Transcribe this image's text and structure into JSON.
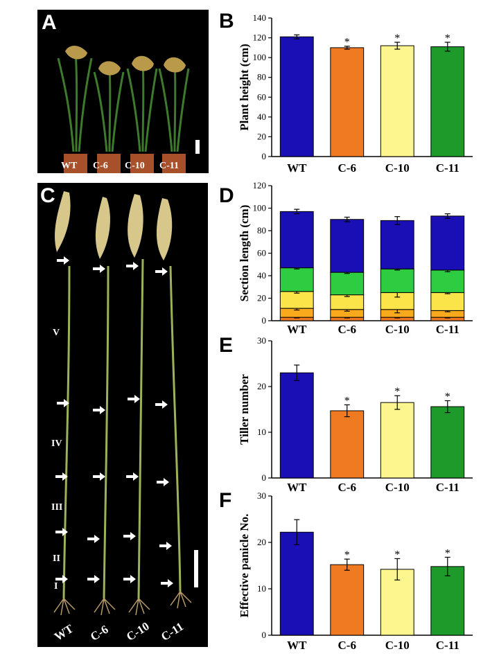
{
  "panels": {
    "A": {
      "letter": "A",
      "labels": [
        "WT",
        "C-6",
        "C-10",
        "C-11"
      ]
    },
    "B": {
      "letter": "B"
    },
    "C": {
      "letter": "C",
      "labels": [
        "WT",
        "C-6",
        "C-10",
        "C-11"
      ],
      "sections": [
        "V",
        "IV",
        "III",
        "II",
        "I"
      ]
    },
    "D": {
      "letter": "D"
    },
    "E": {
      "letter": "E"
    },
    "F": {
      "letter": "F"
    }
  },
  "colors": {
    "WT": "#1a0fb4",
    "C-6": "#f07a22",
    "C-10": "#fdf68e",
    "C-11": "#1e9a2a",
    "sec1": "#f07a22",
    "sec2": "#f9aa1c",
    "sec3": "#fbe44a",
    "sec4": "#2ecc40",
    "sec5": "#1a0fb4"
  },
  "chart_data": [
    {
      "id": "B",
      "type": "bar",
      "categories": [
        "WT",
        "C-6",
        "C-10",
        "C-11"
      ],
      "values": [
        121,
        110,
        112,
        111
      ],
      "errors": [
        2,
        1.5,
        3.5,
        4.5
      ],
      "significance": [
        "",
        "*",
        "*",
        "*"
      ],
      "ylabel": "Plant height (cm)",
      "ylim": [
        0,
        140
      ],
      "yticks": [
        0,
        20,
        40,
        60,
        80,
        100,
        120,
        140
      ]
    },
    {
      "id": "D",
      "type": "bar",
      "stacked": true,
      "categories": [
        "WT",
        "C-6",
        "C-10",
        "C-11"
      ],
      "series": [
        {
          "values": [
            3,
            3,
            3,
            3
          ],
          "errors": [
            0.5,
            0.5,
            0.5,
            0.5
          ]
        },
        {
          "values": [
            8,
            7,
            7,
            6
          ],
          "errors": [
            1.5,
            1.5,
            3,
            1
          ]
        },
        {
          "values": [
            15,
            13,
            15,
            16
          ],
          "errors": [
            1.5,
            1.5,
            4,
            1
          ]
        },
        {
          "values": [
            21,
            20,
            21,
            20
          ],
          "errors": [
            1,
            1,
            1,
            1.5
          ]
        },
        {
          "values": [
            50,
            47,
            43,
            48
          ],
          "errors": [
            2,
            2,
            3.5,
            2
          ]
        }
      ],
      "ylabel": "Section length (cm)",
      "ylim": [
        0,
        120
      ],
      "yticks": [
        0,
        20,
        40,
        60,
        80,
        100,
        120
      ]
    },
    {
      "id": "E",
      "type": "bar",
      "categories": [
        "WT",
        "C-6",
        "C-10",
        "C-11"
      ],
      "values": [
        23,
        14.7,
        16.5,
        15.6
      ],
      "errors": [
        1.7,
        1.3,
        1.5,
        1.3
      ],
      "significance": [
        "",
        "*",
        "*",
        "*"
      ],
      "ylabel": "Tiller number",
      "ylim": [
        0,
        30
      ],
      "yticks": [
        0,
        10,
        20,
        30
      ]
    },
    {
      "id": "F",
      "type": "bar",
      "categories": [
        "WT",
        "C-6",
        "C-10",
        "C-11"
      ],
      "values": [
        22.2,
        15.2,
        14.2,
        14.8
      ],
      "errors": [
        2.7,
        1.2,
        2.3,
        2.0
      ],
      "significance": [
        "",
        "*",
        "*",
        "*"
      ],
      "ylabel": "Effective panicle No.",
      "ylim": [
        0,
        30
      ],
      "yticks": [
        0,
        10,
        20,
        30
      ]
    }
  ]
}
